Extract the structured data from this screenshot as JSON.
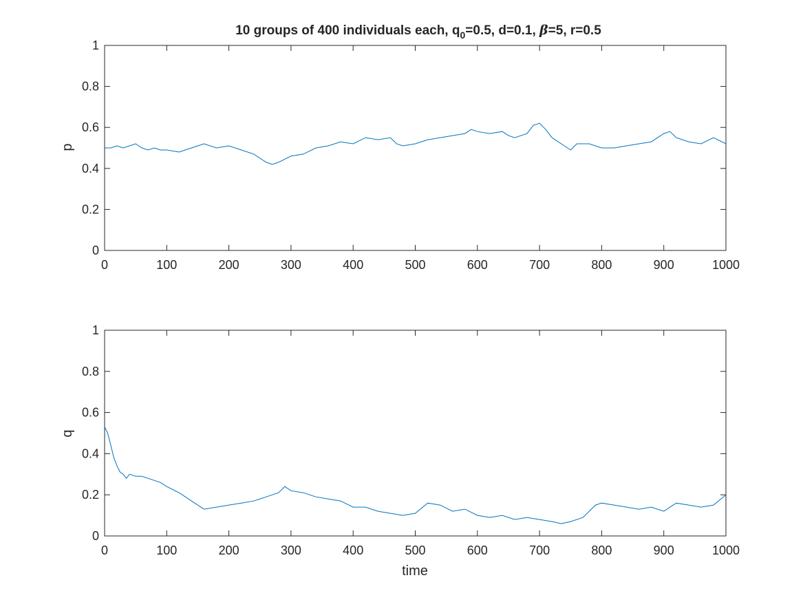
{
  "figure": {
    "title": "10 groups of 400 individuals each, q",
    "title_sub": "0",
    "title_rest": "=0.5, d=0.1, ",
    "title_beta": "β",
    "title_end": "=5, r=0.5"
  },
  "chart_data": [
    {
      "type": "line",
      "ylabel": "p",
      "xlabel": "",
      "xlim": [
        0,
        1000
      ],
      "ylim": [
        0,
        1
      ],
      "xticks": [
        "0",
        "100",
        "200",
        "300",
        "400",
        "500",
        "600",
        "700",
        "800",
        "900",
        "1000"
      ],
      "yticks": [
        "0",
        "0.2",
        "0.4",
        "0.6",
        "0.8",
        "1"
      ],
      "color": "#0072BD",
      "series": [
        {
          "x": [
            0,
            10,
            20,
            30,
            40,
            50,
            60,
            70,
            80,
            90,
            100,
            120,
            140,
            150,
            160,
            180,
            200,
            220,
            240,
            250,
            260,
            270,
            280,
            300,
            320,
            340,
            360,
            380,
            400,
            420,
            440,
            460,
            470,
            480,
            500,
            520,
            540,
            560,
            580,
            590,
            600,
            620,
            640,
            650,
            660,
            680,
            690,
            700,
            710,
            720,
            740,
            750,
            760,
            780,
            800,
            820,
            840,
            860,
            880,
            900,
            910,
            920,
            940,
            960,
            980,
            1000
          ],
          "y": [
            0.5,
            0.5,
            0.51,
            0.5,
            0.51,
            0.52,
            0.5,
            0.49,
            0.5,
            0.49,
            0.49,
            0.48,
            0.5,
            0.51,
            0.52,
            0.5,
            0.51,
            0.49,
            0.47,
            0.45,
            0.43,
            0.42,
            0.43,
            0.46,
            0.47,
            0.5,
            0.51,
            0.53,
            0.52,
            0.55,
            0.54,
            0.55,
            0.52,
            0.51,
            0.52,
            0.54,
            0.55,
            0.56,
            0.57,
            0.59,
            0.58,
            0.57,
            0.58,
            0.56,
            0.55,
            0.57,
            0.61,
            0.62,
            0.59,
            0.55,
            0.51,
            0.49,
            0.52,
            0.52,
            0.5,
            0.5,
            0.51,
            0.52,
            0.53,
            0.57,
            0.58,
            0.55,
            0.53,
            0.52,
            0.55,
            0.52
          ]
        }
      ]
    },
    {
      "type": "line",
      "ylabel": "q",
      "xlabel": "time",
      "xlim": [
        0,
        1000
      ],
      "ylim": [
        0,
        1
      ],
      "xticks": [
        "0",
        "100",
        "200",
        "300",
        "400",
        "500",
        "600",
        "700",
        "800",
        "900",
        "1000"
      ],
      "yticks": [
        "0",
        "0.2",
        "0.4",
        "0.6",
        "0.8",
        "1"
      ],
      "color": "#0072BD",
      "series": [
        {
          "x": [
            0,
            5,
            10,
            15,
            20,
            25,
            30,
            35,
            40,
            50,
            60,
            70,
            80,
            90,
            100,
            120,
            140,
            160,
            180,
            200,
            220,
            240,
            260,
            280,
            290,
            300,
            320,
            340,
            360,
            380,
            400,
            420,
            440,
            460,
            480,
            500,
            520,
            540,
            560,
            580,
            600,
            620,
            640,
            660,
            680,
            700,
            720,
            735,
            750,
            770,
            790,
            800,
            820,
            840,
            860,
            880,
            900,
            920,
            940,
            960,
            980,
            1000
          ],
          "y": [
            0.53,
            0.5,
            0.44,
            0.38,
            0.34,
            0.31,
            0.3,
            0.28,
            0.3,
            0.29,
            0.29,
            0.28,
            0.27,
            0.26,
            0.24,
            0.21,
            0.17,
            0.13,
            0.14,
            0.15,
            0.16,
            0.17,
            0.19,
            0.21,
            0.24,
            0.22,
            0.21,
            0.19,
            0.18,
            0.17,
            0.14,
            0.14,
            0.12,
            0.11,
            0.1,
            0.11,
            0.16,
            0.15,
            0.12,
            0.13,
            0.1,
            0.09,
            0.1,
            0.08,
            0.09,
            0.08,
            0.07,
            0.06,
            0.07,
            0.09,
            0.15,
            0.16,
            0.15,
            0.14,
            0.13,
            0.14,
            0.12,
            0.16,
            0.15,
            0.14,
            0.15,
            0.2
          ]
        }
      ]
    }
  ]
}
